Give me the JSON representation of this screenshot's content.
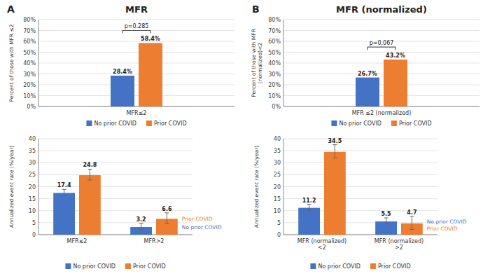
{
  "chart_data": [
    {
      "type": "bar",
      "title": "MFR",
      "categories": [
        "MFR≤2"
      ],
      "series": [
        {
          "name": "No prior COVID",
          "color": "#4472C4",
          "values": [
            28.4
          ],
          "value_labels": [
            "28.4%"
          ]
        },
        {
          "name": "Prior COVID",
          "color": "#ED7D31",
          "values": [
            58.4
          ],
          "value_labels": [
            "58.4%"
          ]
        }
      ],
      "y_label": "Percent of those with MFR ≤2",
      "ylim": [
        0,
        80
      ],
      "yticks": [
        {
          "value": 0,
          "label": "0%"
        },
        {
          "value": 10,
          "label": "10%"
        },
        {
          "value": 20,
          "label": "20%"
        },
        {
          "value": 30,
          "label": "30%"
        },
        {
          "value": 40,
          "label": "40%"
        },
        {
          "value": 50,
          "label": "50%"
        },
        {
          "value": 60,
          "label": "60%"
        },
        {
          "value": 70,
          "label": "70%"
        },
        {
          "value": 80,
          "label": "80%"
        }
      ],
      "grid": true,
      "legend": "bottom",
      "data_labels": true,
      "annotations": [
        {
          "type": "panel",
          "text": "A"
        },
        {
          "type": "bracket",
          "text": "p=0.285"
        }
      ]
    },
    {
      "type": "bar",
      "categories": [
        "MFR≤2",
        "MFR>2"
      ],
      "series": [
        {
          "name": "No prior COVID",
          "color": "#4472C4",
          "values": [
            17.4,
            3.2
          ],
          "error_minus": [
            1.2,
            1.2
          ],
          "error_plus": [
            1.5,
            1.5
          ]
        },
        {
          "name": "Prior COVID",
          "color": "#ED7D31",
          "values": [
            24.8,
            6.6
          ],
          "error_minus": [
            2.0,
            2.0
          ],
          "error_plus": [
            2.5,
            2.5
          ]
        }
      ],
      "y_label": "Annualized event rate (%/year)",
      "ylim": [
        0,
        40
      ],
      "yticks": [
        0,
        5,
        10,
        15,
        20,
        25,
        30,
        35,
        40
      ],
      "grid": true,
      "legend": "bottom",
      "data_labels": true,
      "annotations": [
        {
          "type": "series",
          "text": "Prior COVID"
        },
        {
          "type": "series",
          "text": "No prior COVID"
        }
      ]
    },
    {
      "type": "bar",
      "title": "MFR (normalized)",
      "categories": [
        "MFR ≤2 (normalized)"
      ],
      "series": [
        {
          "name": "No prior COVID",
          "color": "#4472C4",
          "values": [
            26.7
          ],
          "value_labels": [
            "26.7%"
          ]
        },
        {
          "name": "Prior COVID",
          "color": "#ED7D31",
          "values": [
            43.2
          ],
          "value_labels": [
            "43.2%"
          ]
        }
      ],
      "y_label": "Percent of those with MFR\n(normalized)<2",
      "ylim": [
        0,
        80
      ],
      "yticks": [
        {
          "value": 0,
          "label": "0%"
        },
        {
          "value": 10,
          "label": "10%"
        },
        {
          "value": 20,
          "label": "20%"
        },
        {
          "value": 30,
          "label": "30%"
        },
        {
          "value": 40,
          "label": "40%"
        },
        {
          "value": 50,
          "label": "50%"
        },
        {
          "value": 60,
          "label": "60%"
        },
        {
          "value": 70,
          "label": "70%"
        },
        {
          "value": 80,
          "label": "80%"
        }
      ],
      "grid": true,
      "legend": "bottom",
      "data_labels": true,
      "annotations": [
        {
          "type": "panel",
          "text": "B"
        },
        {
          "type": "bracket",
          "text": "p=0.067"
        }
      ]
    },
    {
      "type": "bar",
      "categories": [
        "MFR (normalized)\n<2",
        "MFR (normalized)\n>2"
      ],
      "series": [
        {
          "name": "No prior COVID",
          "color": "#4472C4",
          "values": [
            11.2,
            5.5
          ],
          "error_minus": [
            1.0,
            1.0
          ],
          "error_plus": [
            1.5,
            1.5
          ]
        },
        {
          "name": "Prior COVID",
          "color": "#ED7D31",
          "values": [
            34.5,
            4.7
          ],
          "error_minus": [
            2.5,
            2.5
          ],
          "error_plus": [
            3.0,
            3.0
          ]
        }
      ],
      "y_label": "Annualized event rate (%/year)",
      "ylim": [
        0,
        40
      ],
      "yticks": [
        0,
        5,
        10,
        15,
        20,
        25,
        30,
        35,
        40
      ],
      "grid": true,
      "legend": "bottom",
      "data_labels": true,
      "annotations": [
        {
          "type": "series",
          "text": "Prior COVID"
        },
        {
          "type": "series",
          "text": "No prior COVID"
        }
      ]
    }
  ]
}
